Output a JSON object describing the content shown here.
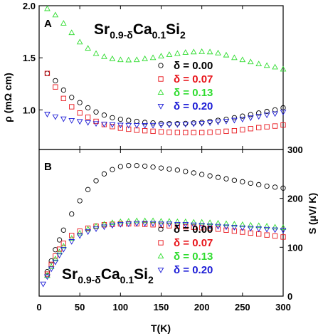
{
  "chart_data": [
    {
      "panel_label": "A",
      "type": "scatter",
      "title": {
        "base": "Sr",
        "sub1": "0.9-δ",
        "mid": "Ca",
        "sub2": "0.1",
        "tail": "Si",
        "sub3": "2"
      },
      "xlabel": "T(K)",
      "ylabel": "ρ (mΩ cm)",
      "xlim": [
        0,
        300
      ],
      "ylim": [
        0.62,
        2.0
      ],
      "x_ticks": [
        "0",
        "50",
        "100",
        "150",
        "200",
        "250",
        "300"
      ],
      "y_ticks": [
        "1.0",
        "1.5",
        "2.0"
      ],
      "y_tick_values": [
        1.0,
        1.5,
        2.0
      ],
      "legend_position": "center-right",
      "series": [
        {
          "name": "δ = 0.00",
          "color": "#000000",
          "marker": "circle",
          "x": [
            10,
            20,
            30,
            40,
            50,
            60,
            70,
            80,
            90,
            100,
            110,
            120,
            130,
            140,
            150,
            160,
            170,
            180,
            190,
            200,
            210,
            220,
            230,
            240,
            250,
            260,
            270,
            280,
            290,
            300
          ],
          "y": [
            1.35,
            1.28,
            1.19,
            1.12,
            1.07,
            1.02,
            0.98,
            0.95,
            0.925,
            0.91,
            0.9,
            0.89,
            0.88,
            0.875,
            0.87,
            0.868,
            0.868,
            0.87,
            0.875,
            0.88,
            0.89,
            0.9,
            0.91,
            0.925,
            0.94,
            0.955,
            0.97,
            0.985,
            1.0,
            1.02
          ]
        },
        {
          "name": "δ = 0.07",
          "color": "#e8151b",
          "marker": "square",
          "x": [
            10,
            20,
            30,
            40,
            50,
            60,
            70,
            80,
            90,
            100,
            110,
            120,
            130,
            140,
            150,
            160,
            170,
            180,
            190,
            200,
            210,
            220,
            230,
            240,
            250,
            260,
            270,
            280,
            290,
            300
          ],
          "y": [
            1.35,
            1.22,
            1.11,
            1.03,
            0.97,
            0.93,
            0.89,
            0.86,
            0.84,
            0.825,
            0.815,
            0.805,
            0.8,
            0.795,
            0.79,
            0.785,
            0.783,
            0.782,
            0.782,
            0.782,
            0.785,
            0.79,
            0.795,
            0.8,
            0.81,
            0.82,
            0.83,
            0.838,
            0.845,
            0.855
          ]
        },
        {
          "name": "δ = 0.13",
          "color": "#2fdc2f",
          "marker": "triangle-up",
          "x": [
            10,
            20,
            30,
            40,
            50,
            60,
            70,
            80,
            90,
            100,
            110,
            120,
            130,
            140,
            150,
            160,
            170,
            180,
            190,
            200,
            210,
            220,
            230,
            240,
            250,
            260,
            270,
            280,
            290,
            300
          ],
          "y": [
            1.97,
            1.91,
            1.83,
            1.74,
            1.65,
            1.59,
            1.54,
            1.51,
            1.49,
            1.48,
            1.478,
            1.48,
            1.49,
            1.5,
            1.515,
            1.53,
            1.54,
            1.55,
            1.555,
            1.558,
            1.555,
            1.545,
            1.525,
            1.5,
            1.48,
            1.46,
            1.44,
            1.425,
            1.41,
            1.39
          ]
        },
        {
          "name": "δ = 0.20",
          "color": "#1c1cd6",
          "marker": "triangle-down",
          "x": [
            10,
            20,
            30,
            40,
            50,
            60,
            70,
            80,
            90,
            100,
            110,
            120,
            130,
            140,
            150,
            160,
            170,
            180,
            190,
            200,
            210,
            220,
            230,
            240,
            250,
            260,
            270,
            280,
            290,
            300
          ],
          "y": [
            0.96,
            0.935,
            0.915,
            0.9,
            0.89,
            0.88,
            0.87,
            0.865,
            0.86,
            0.855,
            0.853,
            0.852,
            0.852,
            0.853,
            0.855,
            0.857,
            0.86,
            0.863,
            0.867,
            0.872,
            0.878,
            0.885,
            0.893,
            0.902,
            0.912,
            0.925,
            0.938,
            0.952,
            0.965,
            0.98
          ]
        }
      ]
    },
    {
      "panel_label": "B",
      "type": "scatter",
      "title": {
        "base": "Sr",
        "sub1": "0.9-δ",
        "mid": "Ca",
        "sub2": "0.1",
        "tail": "Si",
        "sub3": "2"
      },
      "xlabel": "T(K)",
      "ylabel": "S (μV/ K)",
      "xlim": [
        0,
        300
      ],
      "ylim": [
        0,
        300
      ],
      "x_ticks": [
        "0",
        "50",
        "100",
        "150",
        "200",
        "250",
        "300"
      ],
      "y_ticks": [
        "0",
        "100",
        "200",
        "300"
      ],
      "y_tick_values": [
        0,
        100,
        200,
        300
      ],
      "legend_position": "bottom-right",
      "series": [
        {
          "name": "δ = 0.00",
          "color": "#000000",
          "marker": "circle",
          "x": [
            10,
            15,
            20,
            25,
            30,
            40,
            50,
            60,
            70,
            80,
            90,
            100,
            110,
            120,
            130,
            140,
            150,
            160,
            170,
            180,
            190,
            200,
            210,
            220,
            230,
            240,
            250,
            260,
            270,
            280,
            290,
            300
          ],
          "y": [
            50,
            72,
            95,
            115,
            135,
            168,
            195,
            218,
            236,
            250,
            259,
            265,
            267,
            267,
            266,
            264,
            262,
            260,
            258,
            255,
            252,
            249,
            246,
            243,
            240,
            237,
            234,
            231,
            228,
            225,
            223,
            221
          ]
        },
        {
          "name": "δ = 0.07",
          "color": "#e8151b",
          "marker": "square",
          "x": [
            10,
            15,
            20,
            25,
            30,
            40,
            50,
            60,
            70,
            80,
            90,
            100,
            110,
            120,
            130,
            140,
            150,
            160,
            170,
            180,
            190,
            200,
            210,
            220,
            230,
            240,
            250,
            260,
            270,
            280,
            290,
            300
          ],
          "y": [
            45,
            65,
            82,
            96,
            108,
            124,
            133,
            139,
            143,
            146,
            147,
            148,
            148,
            148,
            147,
            146,
            145,
            144,
            143,
            142,
            141,
            140,
            139,
            137,
            135,
            133,
            131,
            129,
            127,
            125,
            123,
            121
          ]
        },
        {
          "name": "δ = 0.13",
          "color": "#2fdc2f",
          "marker": "triangle-up",
          "x": [
            10,
            15,
            20,
            25,
            30,
            40,
            50,
            60,
            70,
            80,
            90,
            100,
            110,
            120,
            130,
            140,
            150,
            160,
            170,
            180,
            190,
            200,
            210,
            220,
            230,
            240,
            250,
            260,
            270,
            280,
            290,
            300
          ],
          "y": [
            42,
            60,
            76,
            90,
            102,
            118,
            129,
            137,
            143,
            147,
            150,
            152,
            153,
            154,
            154,
            154,
            153,
            153,
            152,
            152,
            151,
            151,
            150,
            149,
            148,
            147,
            146,
            145,
            144,
            143,
            141,
            140
          ]
        },
        {
          "name": "δ = 0.20",
          "color": "#1c1cd6",
          "marker": "triangle-down",
          "x": [
            10,
            15,
            20,
            25,
            30,
            40,
            50,
            60,
            70,
            80,
            90,
            100,
            110,
            120,
            130,
            140,
            150,
            160,
            170,
            180,
            190,
            200,
            210,
            220,
            230,
            240,
            250,
            260,
            270,
            280,
            290,
            300
          ],
          "y": [
            40,
            56,
            70,
            84,
            96,
            112,
            124,
            132,
            138,
            142,
            145,
            147,
            148,
            149,
            149,
            149,
            148,
            148,
            147,
            147,
            146,
            145,
            144,
            143,
            142,
            141,
            140,
            139,
            138,
            137,
            136,
            135
          ]
        }
      ]
    }
  ],
  "extra_point_B": {
    "x": 5,
    "y": 25
  }
}
